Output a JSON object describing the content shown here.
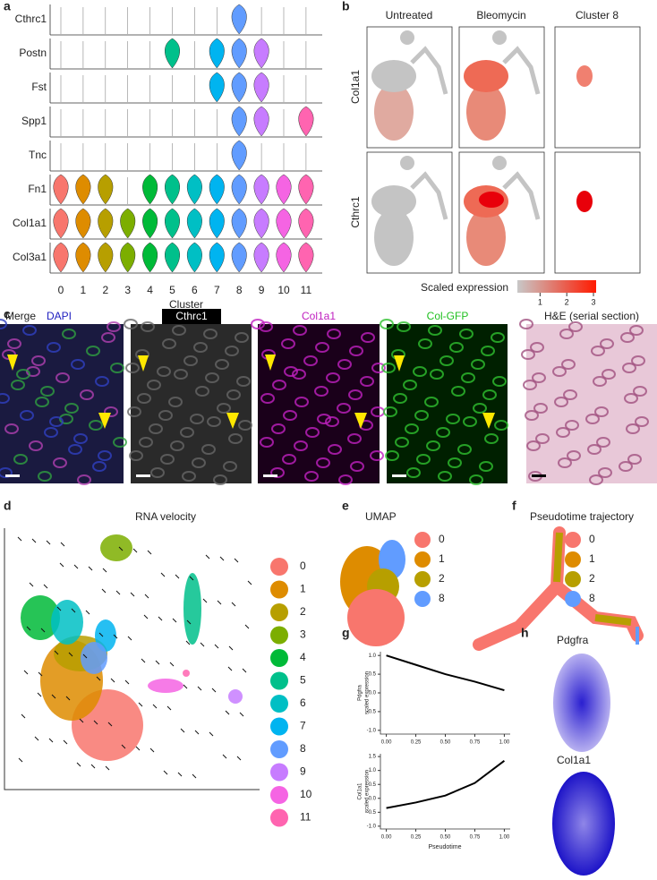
{
  "panel_a": {
    "letter": "a",
    "genes": [
      "Cthrc1",
      "Postn",
      "Fst",
      "Spp1",
      "Tnc",
      "Fn1",
      "Col1a1",
      "Col3a1"
    ],
    "clusters": [
      "0",
      "1",
      "2",
      "3",
      "4",
      "5",
      "6",
      "7",
      "8",
      "9",
      "10",
      "11"
    ],
    "x_label": "Cluster"
  },
  "panel_b": {
    "letter": "b",
    "columns": [
      "Untreated",
      "Bleomycin",
      "Cluster 8"
    ],
    "rows": [
      "Col1a1",
      "Cthrc1"
    ],
    "colorbar_label": "Scaled expression",
    "colorbar_ticks": [
      1,
      2,
      3
    ]
  },
  "panel_c": {
    "letter": "c",
    "merge": "Merge",
    "dapi": "DAPI",
    "images": [
      "Cthrc1",
      "Col1a1",
      "Col-GFP",
      "H&E (serial section)"
    ]
  },
  "panel_d": {
    "letter": "d",
    "title": "RNA velocity",
    "legend": [
      "0",
      "1",
      "2",
      "3",
      "4",
      "5",
      "6",
      "7",
      "8",
      "9",
      "10",
      "11"
    ],
    "colors": [
      "#f8766d",
      "#de8c00",
      "#b79f00",
      "#7cae00",
      "#00ba38",
      "#00c08b",
      "#00bfc4",
      "#00b4f0",
      "#619cff",
      "#c77cff",
      "#f564e3",
      "#ff64b0"
    ]
  },
  "panel_e": {
    "letter": "e",
    "title": "UMAP",
    "legend": [
      "0",
      "1",
      "2",
      "8"
    ]
  },
  "panel_f": {
    "letter": "f",
    "title": "Pseudotime trajectory",
    "legend": [
      "0",
      "1",
      "2",
      "8"
    ]
  },
  "panel_g": {
    "letter": "g",
    "x_label": "Pseudotime",
    "charts": [
      {
        "type": "line",
        "y_label": [
          "Pdgfra",
          "scaled expression"
        ],
        "x": [
          0,
          0.25,
          0.5,
          0.75,
          1
        ],
        "values": [
          1.0,
          0.75,
          0.5,
          0.3,
          0.07
        ],
        "xlim": [
          -0.05,
          1.05
        ],
        "ylim": [
          -1.1,
          1.1
        ],
        "xticks": [
          {
            "value": 0,
            "label": "0.00"
          },
          {
            "value": 0.25,
            "label": "0.25"
          },
          {
            "value": 0.5,
            "label": "0.50"
          },
          {
            "value": 0.75,
            "label": "0.75"
          },
          {
            "value": 1,
            "label": "1.00"
          }
        ],
        "yticks": [
          {
            "value": 1,
            "label": "1.0"
          },
          0.5,
          {
            "value": 0,
            "label": "0.0"
          },
          -0.5,
          {
            "value": -1,
            "label": "-1.0"
          }
        ]
      },
      {
        "type": "line",
        "y_label": [
          "Col1a1",
          "scaled expression"
        ],
        "x": [
          0,
          0.25,
          0.5,
          0.75,
          1
        ],
        "values": [
          -0.35,
          -0.15,
          0.1,
          0.55,
          1.35
        ],
        "xlim": [
          -0.05,
          1.05
        ],
        "ylim": [
          -1.1,
          1.6
        ],
        "xticks": [
          {
            "value": 0,
            "label": "0.00"
          },
          {
            "value": 0.25,
            "label": "0.25"
          },
          {
            "value": 0.5,
            "label": "0.50"
          },
          {
            "value": 0.75,
            "label": "0.75"
          },
          {
            "value": 1,
            "label": "1.00"
          }
        ],
        "yticks": [
          1.5,
          {
            "value": 1,
            "label": "1.0"
          },
          0.5,
          {
            "value": 0,
            "label": "0.0"
          },
          -0.5,
          {
            "value": -1,
            "label": "-1.0"
          }
        ]
      }
    ]
  },
  "panel_h": {
    "letter": "h",
    "labels": [
      "Pdgfra",
      "Col1a1"
    ]
  }
}
